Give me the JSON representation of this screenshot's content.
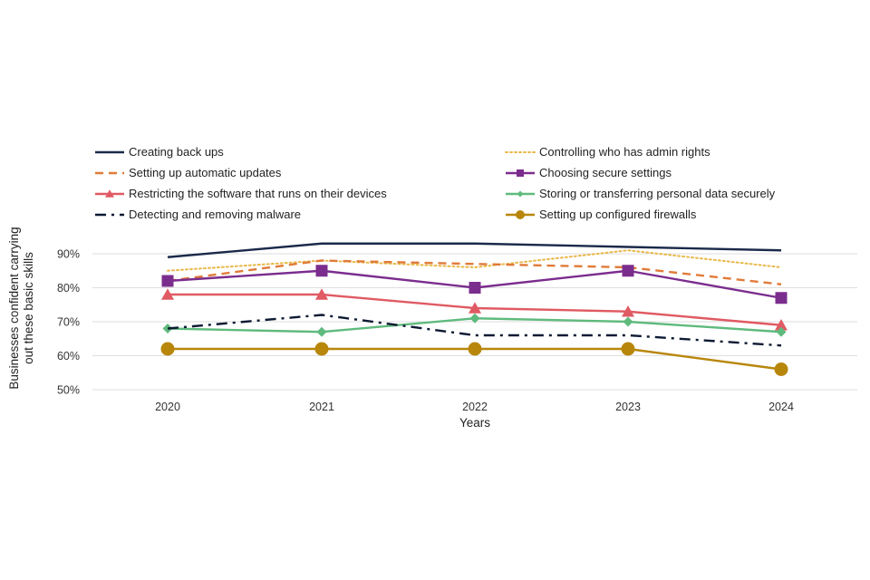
{
  "chart_data": {
    "type": "line",
    "title": "",
    "xlabel": "Years",
    "ylabel": "Businesses confident carrying out these basic skills",
    "ylabel_lines": [
      "Businesses confident carrying",
      "out these basic skills"
    ],
    "categories": [
      "2020",
      "2021",
      "2022",
      "2023",
      "2024"
    ],
    "ylim": [
      50,
      90
    ],
    "yticks": [
      50,
      60,
      70,
      80,
      90
    ],
    "ytick_labels": [
      "50%",
      "60%",
      "70%",
      "80%",
      "90%"
    ],
    "grid": "horizontal",
    "legend_position": "top",
    "series": [
      {
        "name": "Creating back ups",
        "values": [
          89,
          93,
          93,
          92,
          91
        ],
        "color": "#1b2a4a",
        "dash": "solid",
        "marker": "none"
      },
      {
        "name": "Controlling who has admin rights",
        "values": [
          85,
          88,
          86,
          91,
          86
        ],
        "color": "#e8b84a",
        "dash": "dotted",
        "marker": "none"
      },
      {
        "name": "Setting up automatic updates",
        "values": [
          82,
          88,
          87,
          86,
          81
        ],
        "color": "#e07b39",
        "dash": "dashed",
        "marker": "none"
      },
      {
        "name": "Choosing secure settings",
        "values": [
          82,
          85,
          80,
          85,
          77
        ],
        "color": "#7b2d8e",
        "dash": "solid",
        "marker": "square"
      },
      {
        "name": "Restricting the software that runs on their devices",
        "values": [
          78,
          78,
          74,
          73,
          69
        ],
        "color": "#e05a63",
        "dash": "solid",
        "marker": "triangle"
      },
      {
        "name": "Storing or transferring personal data securely",
        "values": [
          68,
          67,
          71,
          70,
          67
        ],
        "color": "#5fba7d",
        "dash": "solid",
        "marker": "diamond"
      },
      {
        "name": "Detecting and removing malware",
        "values": [
          68,
          72,
          66,
          66,
          63
        ],
        "color": "#0e1a33",
        "dash": "dashdot",
        "marker": "none"
      },
      {
        "name": "Setting up configured firewalls",
        "values": [
          62,
          62,
          62,
          62,
          56
        ],
        "color": "#b8860b",
        "dash": "solid",
        "marker": "circle"
      }
    ]
  }
}
